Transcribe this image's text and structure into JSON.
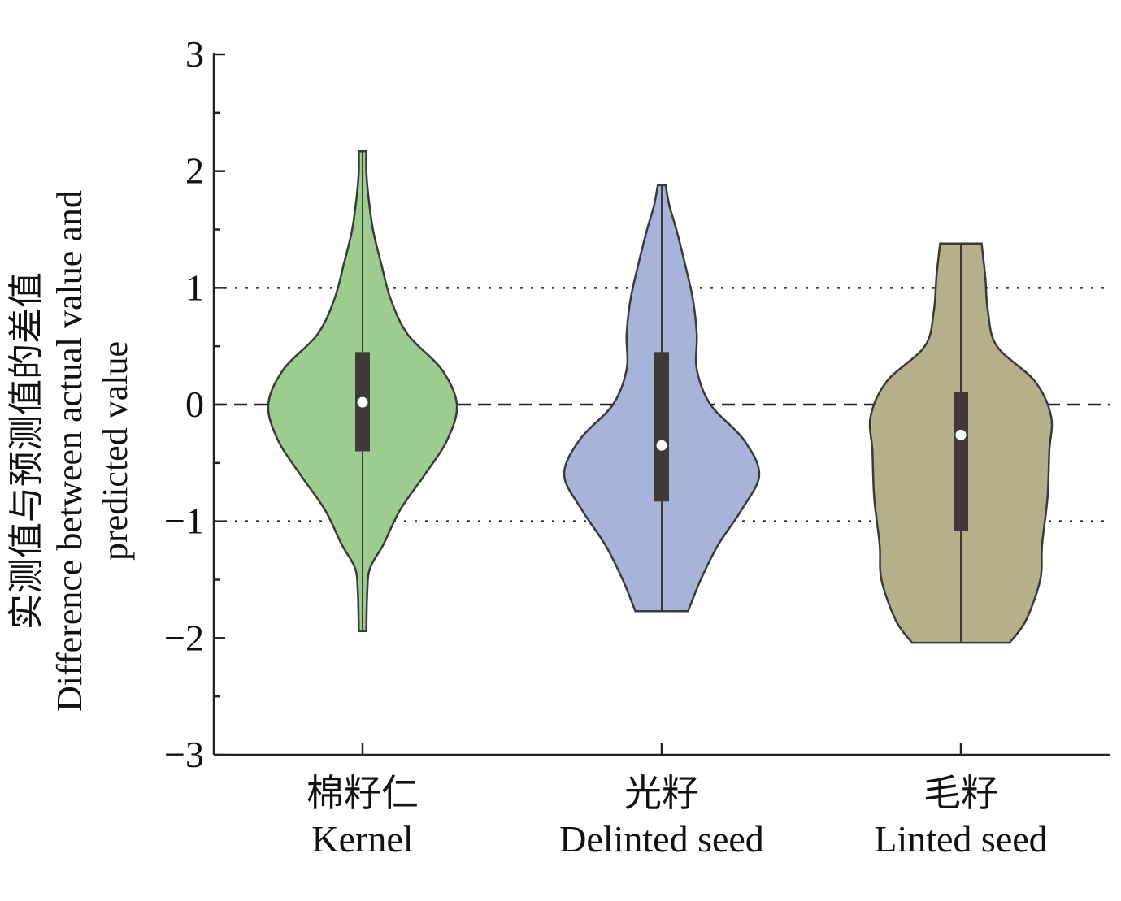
{
  "chart_data": {
    "type": "violin",
    "ylabel_lines": [
      "实测值与预测值的差值",
      "Difference between actual value and",
      "predicted value"
    ],
    "ylim": [
      -3,
      3
    ],
    "yticks": [
      -3,
      -2,
      -1,
      0,
      1,
      2,
      3
    ],
    "ytick_labels": [
      "−3",
      "−2",
      "−1",
      "0",
      "1",
      "2",
      "3"
    ],
    "reference_lines": [
      {
        "y": 1,
        "style": "dotted"
      },
      {
        "y": 0,
        "style": "dashed"
      },
      {
        "y": -1,
        "style": "dotted"
      }
    ],
    "categories": [
      {
        "label_cn": "棉籽仁",
        "label_en": "Kernel",
        "color": "#9ccc8e",
        "min": -1.94,
        "max": 2.17,
        "q1": -0.4,
        "q3": 0.45,
        "median": 0.02,
        "profile": [
          [
            -1.94,
            0.04
          ],
          [
            -1.6,
            0.05
          ],
          [
            -1.4,
            0.08
          ],
          [
            -1.2,
            0.22
          ],
          [
            -0.9,
            0.4
          ],
          [
            -0.6,
            0.66
          ],
          [
            -0.3,
            0.9
          ],
          [
            0.0,
            1.0
          ],
          [
            0.3,
            0.84
          ],
          [
            0.6,
            0.48
          ],
          [
            0.9,
            0.3
          ],
          [
            1.2,
            0.2
          ],
          [
            1.5,
            0.11
          ],
          [
            1.8,
            0.06
          ],
          [
            2.0,
            0.04
          ],
          [
            2.17,
            0.04
          ]
        ]
      },
      {
        "label_cn": "光籽",
        "label_en": "Delinted seed",
        "color": "#a7b3d9",
        "min": -1.77,
        "max": 1.88,
        "q1": -0.83,
        "q3": 0.45,
        "median": -0.35,
        "profile": [
          [
            -1.77,
            0.27
          ],
          [
            -1.5,
            0.4
          ],
          [
            -1.2,
            0.58
          ],
          [
            -0.9,
            0.82
          ],
          [
            -0.6,
            1.0
          ],
          [
            -0.3,
            0.84
          ],
          [
            0.0,
            0.5
          ],
          [
            0.3,
            0.36
          ],
          [
            0.6,
            0.36
          ],
          [
            0.9,
            0.32
          ],
          [
            1.2,
            0.24
          ],
          [
            1.5,
            0.15
          ],
          [
            1.7,
            0.08
          ],
          [
            1.88,
            0.04
          ]
        ]
      },
      {
        "label_cn": "毛籽",
        "label_en": "Linted seed",
        "color": "#b3b08a",
        "min": -2.04,
        "max": 1.38,
        "q1": -1.08,
        "q3": 0.11,
        "median": -0.26,
        "profile": [
          [
            -2.04,
            0.54
          ],
          [
            -1.85,
            0.72
          ],
          [
            -1.5,
            0.88
          ],
          [
            -1.2,
            0.9
          ],
          [
            -0.8,
            0.96
          ],
          [
            -0.4,
            0.98
          ],
          [
            -0.1,
            1.0
          ],
          [
            0.2,
            0.82
          ],
          [
            0.5,
            0.4
          ],
          [
            0.8,
            0.3
          ],
          [
            1.1,
            0.27
          ],
          [
            1.38,
            0.23
          ]
        ]
      }
    ]
  }
}
